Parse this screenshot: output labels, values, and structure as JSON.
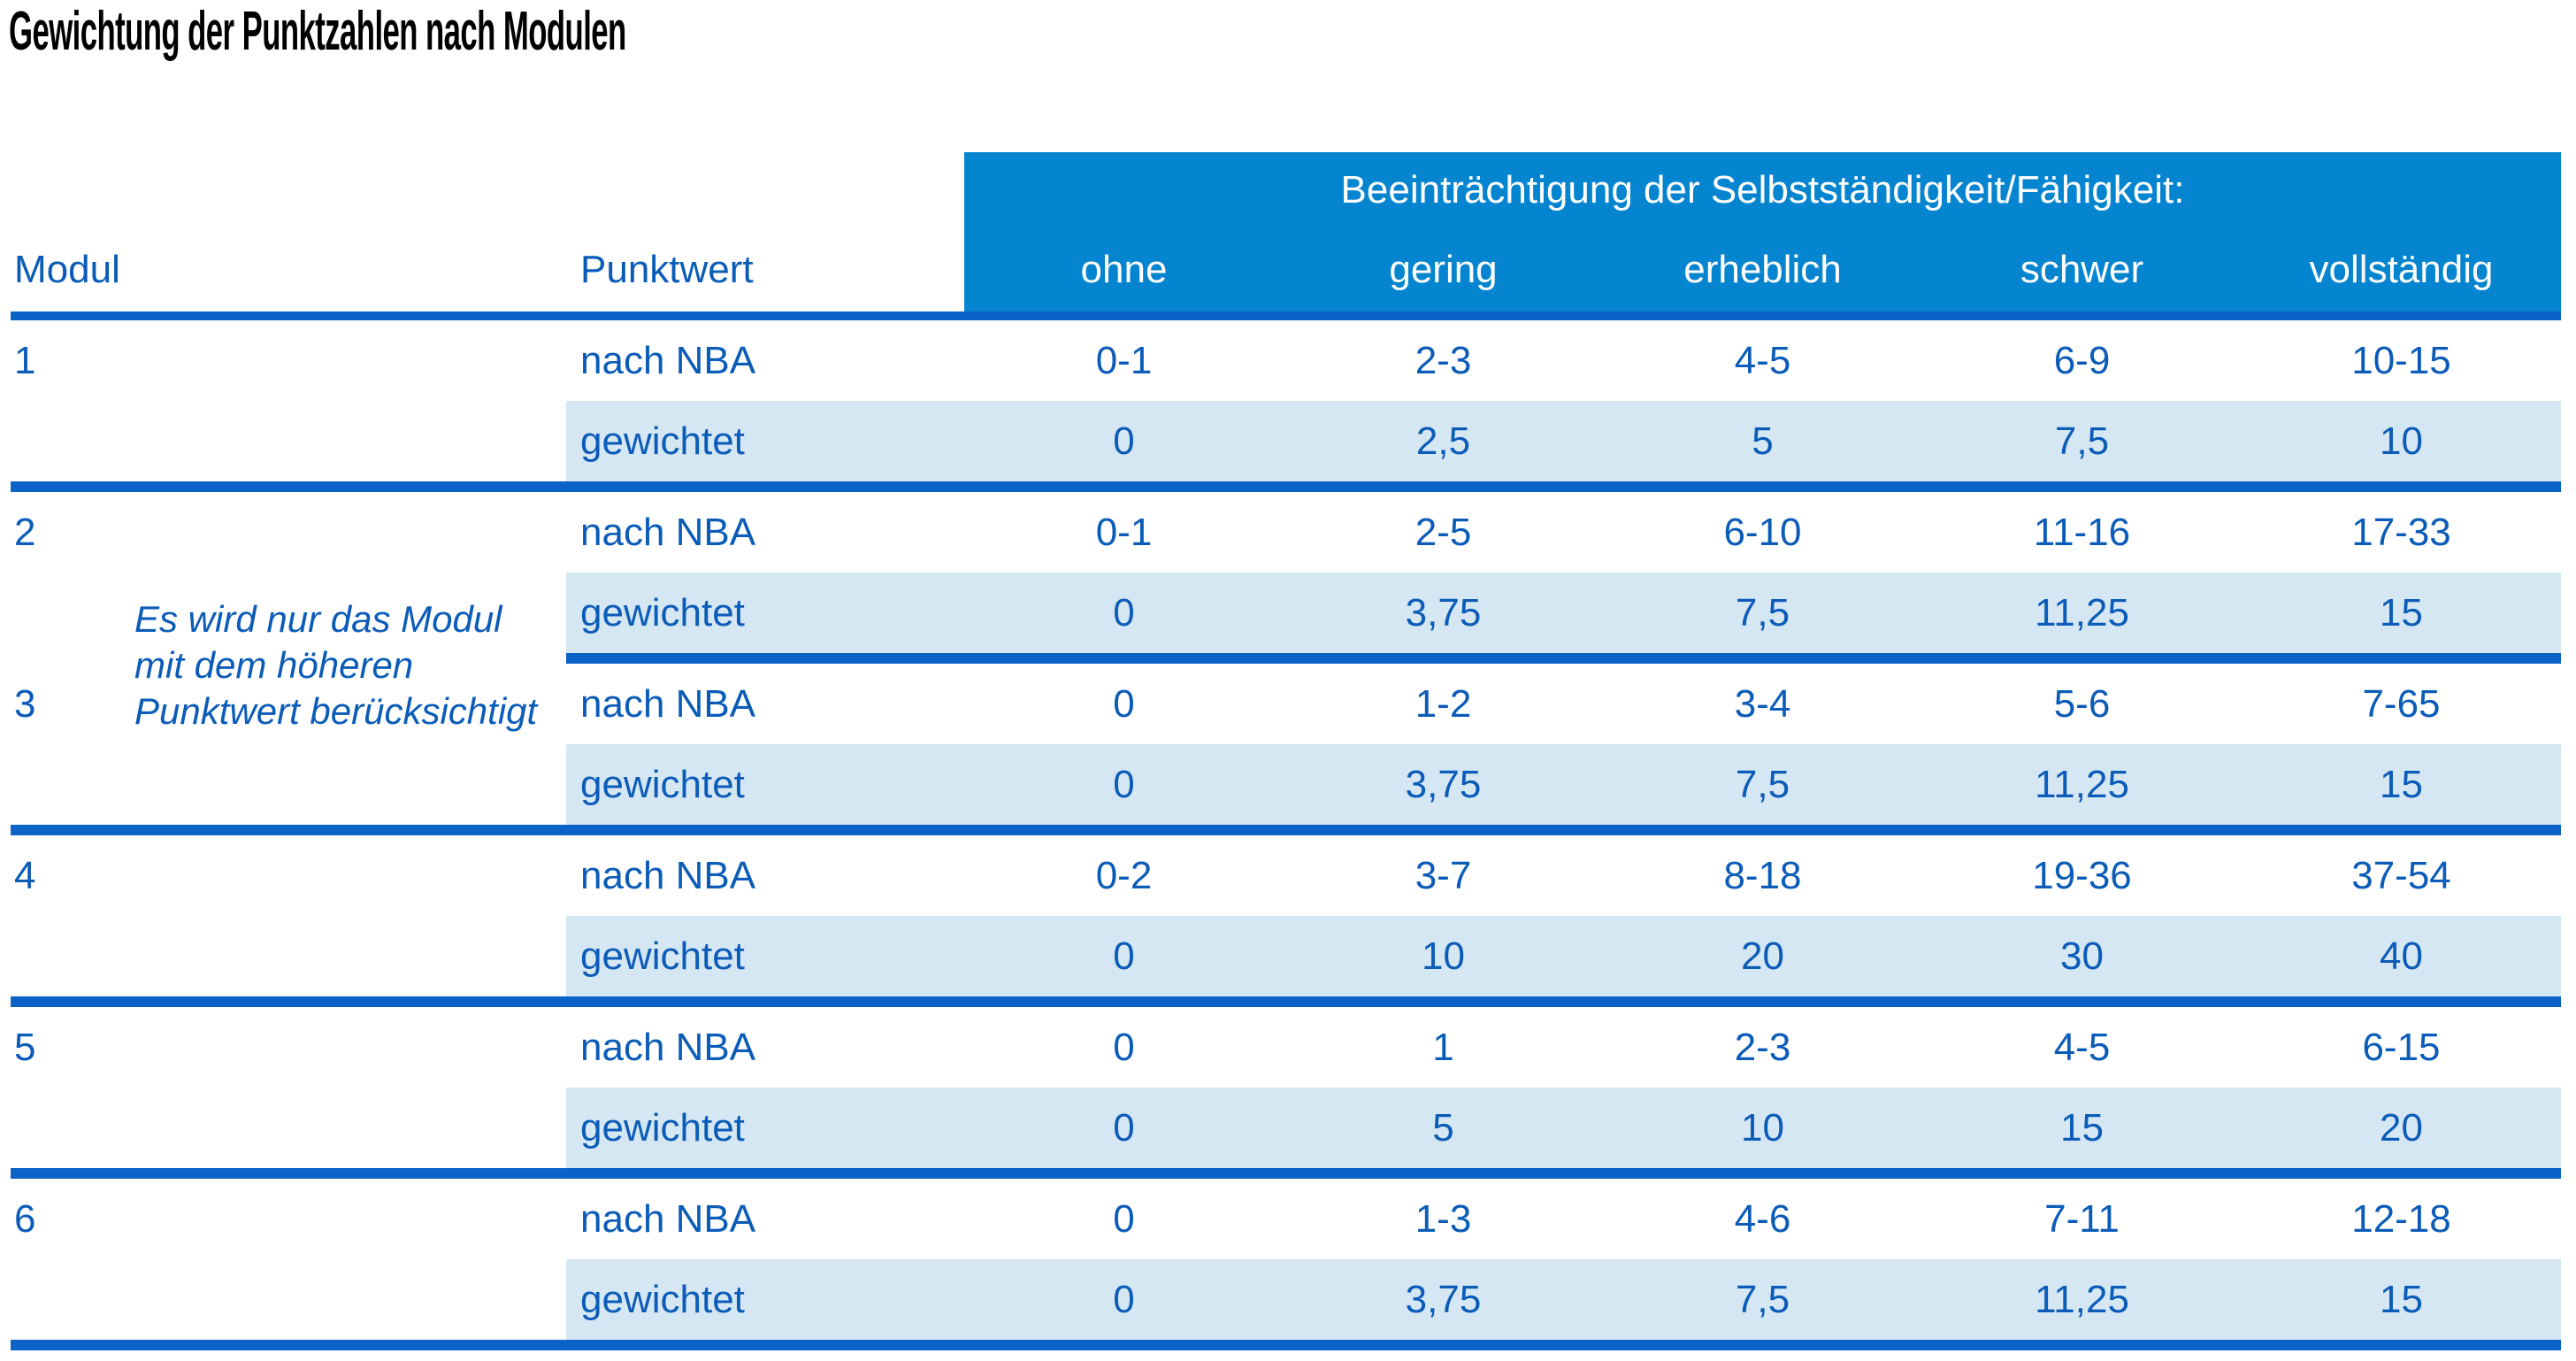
{
  "title": "Gewichtung der Punktzahlen nach Modulen",
  "table": {
    "group_header": "Beeinträchtigung der Selbstständigkeit/Fähigkeit:",
    "col_headers": {
      "modul": "Modul",
      "punktwert": "Punktwert"
    },
    "severity_levels": [
      "ohne",
      "gering",
      "erheblich",
      "schwer",
      "vollständig"
    ],
    "row_labels": {
      "nba": "nach NBA",
      "weighted": "gewichtet"
    },
    "note": {
      "lines": [
        "Es wird nur das Modul",
        "mit dem höheren",
        "Punktwert berücksichtigt"
      ]
    },
    "modules": [
      {
        "number": "1",
        "nba": [
          "0-1",
          "2-3",
          "4-5",
          "6-9",
          "10-15"
        ],
        "weighted": [
          "0",
          "2,5",
          "5",
          "7,5",
          "10"
        ]
      },
      {
        "number": "2",
        "nba": [
          "0-1",
          "2-5",
          "6-10",
          "11-16",
          "17-33"
        ],
        "weighted": [
          "0",
          "3,75",
          "7,5",
          "11,25",
          "15"
        ]
      },
      {
        "number": "3",
        "nba": [
          "0",
          "1-2",
          "3-4",
          "5-6",
          "7-65"
        ],
        "weighted": [
          "0",
          "3,75",
          "7,5",
          "11,25",
          "15"
        ]
      },
      {
        "number": "4",
        "nba": [
          "0-2",
          "3-7",
          "8-18",
          "19-36",
          "37-54"
        ],
        "weighted": [
          "0",
          "10",
          "20",
          "30",
          "40"
        ]
      },
      {
        "number": "5",
        "nba": [
          "0",
          "1",
          "2-3",
          "4-5",
          "6-15"
        ],
        "weighted": [
          "0",
          "5",
          "10",
          "15",
          "20"
        ]
      },
      {
        "number": "6",
        "nba": [
          "0",
          "1-3",
          "4-6",
          "7-11",
          "12-18"
        ],
        "weighted": [
          "0",
          "3,75",
          "7,5",
          "11,25",
          "15"
        ]
      }
    ]
  },
  "colors": {
    "header_blue": "#0584d0",
    "row_highlight_blue": "#d6e7f4",
    "rule_blue": "#0b63c8",
    "text_blue": "#0b5cb8"
  }
}
